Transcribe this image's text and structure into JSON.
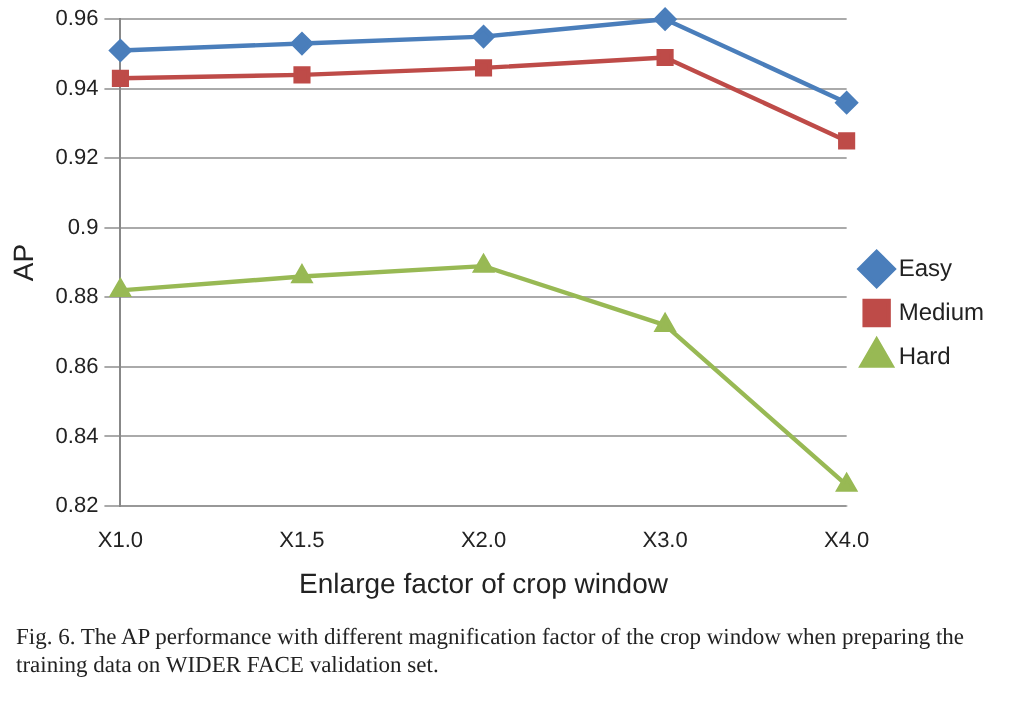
{
  "chart_data": {
    "type": "line",
    "xlabel": "Enlarge factor of crop window",
    "ylabel": "AP",
    "categories": [
      "X1.0",
      "X1.5",
      "X2.0",
      "X3.0",
      "X4.0"
    ],
    "series": [
      {
        "name": "Easy",
        "color": "#4a7ebb",
        "marker": "diamond",
        "values": [
          0.951,
          0.953,
          0.955,
          0.96,
          0.936
        ]
      },
      {
        "name": "Medium",
        "color": "#be4b48",
        "marker": "square",
        "values": [
          0.943,
          0.944,
          0.946,
          0.949,
          0.925
        ]
      },
      {
        "name": "Hard",
        "color": "#98b954",
        "marker": "triangle",
        "values": [
          0.882,
          0.886,
          0.889,
          0.872,
          0.826
        ]
      }
    ],
    "ylim": [
      0.82,
      0.96
    ],
    "yticks": [
      0.82,
      0.84,
      0.86,
      0.88,
      0.9,
      0.92,
      0.94,
      0.96
    ],
    "grid": "y",
    "legend": "right",
    "line_style": "solid",
    "annotations": [
      "Fig. 6. The AP performance with different magnification factor of the crop window when preparing the training data on WIDER FACE validation set."
    ]
  }
}
